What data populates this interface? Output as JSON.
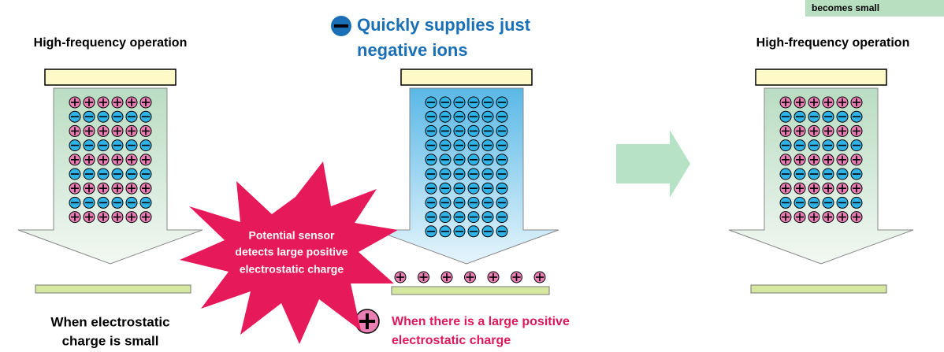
{
  "top_note": "becomes small",
  "left_panel": {
    "title": "High-frequency operation",
    "caption": [
      "When electrostatic",
      "charge is small"
    ]
  },
  "middle_panel": {
    "headline": [
      "Quickly supplies just",
      "negative ions"
    ],
    "burst": [
      "Potential sensor",
      "detects large positive",
      "electrostatic charge"
    ],
    "caption": [
      "When there is a large positive",
      "electrostatic charge"
    ]
  },
  "right_panel": {
    "title": "High-frequency operation"
  }
}
